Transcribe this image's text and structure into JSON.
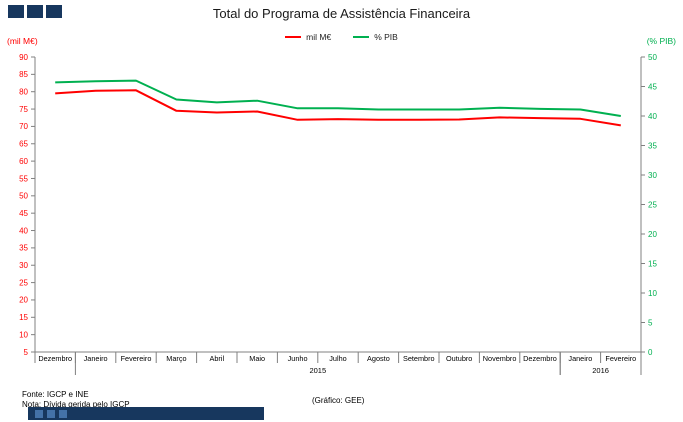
{
  "title": "Total do Programa de Assistência Financeira",
  "legend": [
    {
      "label": "mil M€",
      "color": "#FF0000"
    },
    {
      "label": "% PIB",
      "color": "#00B050"
    }
  ],
  "left_axis_unit": "(mil M€)",
  "right_axis_unit": "(% PIB)",
  "footer": {
    "source": "Fonte: IGCP e INE",
    "note": "Nota: Dívida gerida pelo IGCP",
    "credit": "(Gráfico: GEE)"
  },
  "chart_data": {
    "type": "line",
    "title": "Total do Programa de Assistência Financeira",
    "categories": [
      "Dezembro",
      "Janeiro",
      "Fevereiro",
      "Março",
      "Abril",
      "Maio",
      "Junho",
      "Julho",
      "Agosto",
      "Setembro",
      "Outubro",
      "Novembro",
      "Dezembro",
      "Janeiro",
      "Fevereiro"
    ],
    "year_groups": [
      {
        "label": "2015",
        "from": 1,
        "to": 12
      },
      {
        "label": "2016",
        "from": 13,
        "to": 14
      }
    ],
    "series": [
      {
        "name": "mil M€",
        "axis": "left",
        "color": "#FF0000",
        "values": [
          79.5,
          80.3,
          80.4,
          74.5,
          74.0,
          74.3,
          71.9,
          72.1,
          71.9,
          71.9,
          72.0,
          72.6,
          72.4,
          72.2,
          70.3
        ]
      },
      {
        "name": "% PIB",
        "axis": "right",
        "color": "#00B050",
        "values": [
          45.7,
          45.9,
          46.0,
          42.8,
          42.3,
          42.6,
          41.3,
          41.3,
          41.1,
          41.1,
          41.1,
          41.4,
          41.2,
          41.1,
          40.0
        ]
      }
    ],
    "left_axis": {
      "min": 5,
      "max": 90,
      "step": 5,
      "color": "#FF0000"
    },
    "right_axis": {
      "min": 0,
      "max": 50,
      "step": 5,
      "color": "#00B050"
    },
    "legend_position": "top",
    "grid": false
  }
}
